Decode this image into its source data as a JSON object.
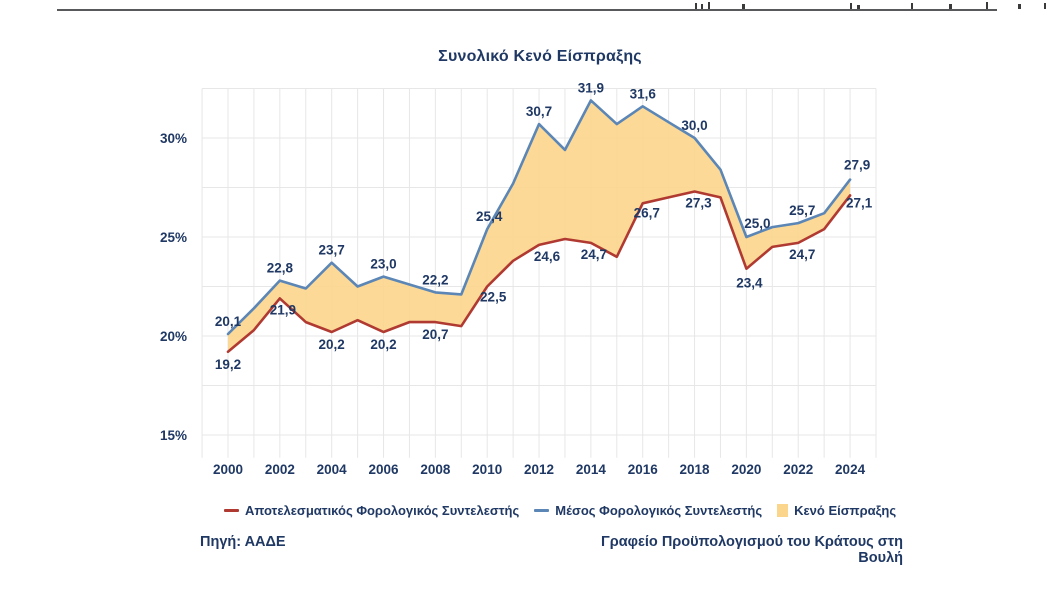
{
  "header": {
    "rule_visible": true
  },
  "chart_data": {
    "type": "area",
    "title": "Συνολικό Κενό Είσπραξης",
    "x": [
      2000,
      2001,
      2002,
      2003,
      2004,
      2005,
      2006,
      2007,
      2008,
      2009,
      2010,
      2011,
      2012,
      2013,
      2014,
      2015,
      2016,
      2017,
      2018,
      2019,
      2020,
      2021,
      2022,
      2023,
      2024
    ],
    "series": [
      {
        "name": "Μέσος Φορολογικός Συντελεστής",
        "role": "upper-line",
        "color": "#5b86b5",
        "values": [
          20.1,
          21.4,
          22.8,
          22.4,
          23.7,
          22.5,
          23.0,
          22.6,
          22.2,
          22.1,
          25.4,
          27.7,
          30.7,
          29.4,
          31.9,
          30.7,
          31.6,
          30.8,
          30.0,
          28.4,
          25.0,
          25.5,
          25.7,
          26.2,
          27.9
        ]
      },
      {
        "name": "Αποτελεσματικός Φορολογικός Συντελεστής",
        "role": "lower-line",
        "color": "#b03a31",
        "values": [
          19.2,
          20.3,
          21.9,
          20.7,
          20.2,
          20.8,
          20.2,
          20.7,
          20.7,
          20.5,
          22.5,
          23.8,
          24.6,
          24.9,
          24.7,
          24.0,
          26.7,
          27.0,
          27.3,
          27.0,
          23.4,
          24.5,
          24.7,
          25.4,
          27.1
        ]
      }
    ],
    "gap_fill": {
      "label": "Κενό Είσπραξης",
      "color": "#fcd58c"
    },
    "labeled_years": [
      2000,
      2002,
      2004,
      2006,
      2008,
      2010,
      2012,
      2014,
      2016,
      2018,
      2020,
      2022,
      2024
    ],
    "label_decimal_separator": ",",
    "y_ticks": [
      15,
      20,
      25,
      30
    ],
    "y_tick_suffix": "%",
    "ylim": [
      14,
      32.5
    ],
    "xlim": [
      1999,
      2025
    ],
    "grid": true,
    "legend_position": "bottom"
  },
  "legend": {
    "items": [
      {
        "label": "Αποτελεσματικός Φορολογικός Συντελεστής",
        "marker": "line",
        "color": "#b03a31"
      },
      {
        "label": "Μέσος Φορολογικός Συντελεστής",
        "marker": "line",
        "color": "#5b86b5"
      },
      {
        "label": "Κενό Είσπραξης",
        "marker": "square",
        "color": "#fcd58c"
      }
    ]
  },
  "footer": {
    "source": "Πηγή: ΑΑΔΕ",
    "credit": "Γραφείο Προϋπολογισμού του Κράτους στη Βουλή"
  },
  "colors": {
    "text": "#1f3864",
    "grid": "#e7e7e7",
    "average_line": "#5b86b5",
    "effective_line": "#b03a31",
    "gap_fill": "#fcd58c",
    "header_rule": "#58595b"
  }
}
